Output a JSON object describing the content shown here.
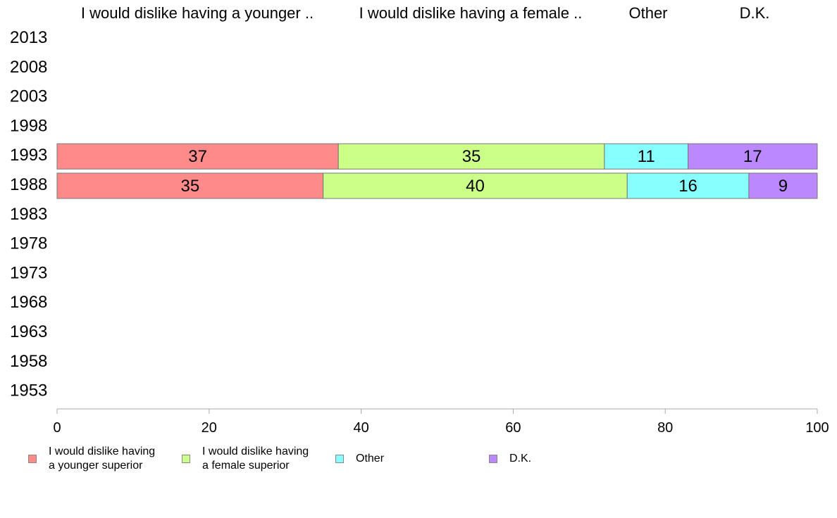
{
  "chart_data": {
    "type": "bar",
    "orientation": "horizontal",
    "stacked": true,
    "categories": [
      "2013",
      "2008",
      "2003",
      "1998",
      "1993",
      "1988",
      "1983",
      "1978",
      "1973",
      "1968",
      "1963",
      "1958",
      "1953"
    ],
    "series": [
      {
        "name": "I would dislike having a younger ..",
        "legend": "I would dislike having\na younger superior",
        "color": "#ff8a8a",
        "values": [
          null,
          null,
          null,
          null,
          37,
          35,
          null,
          null,
          null,
          null,
          null,
          null,
          null
        ]
      },
      {
        "name": "I would dislike having a female ..",
        "legend": "I would dislike having\na female superior",
        "color": "#ccff88",
        "values": [
          null,
          null,
          null,
          null,
          35,
          40,
          null,
          null,
          null,
          null,
          null,
          null,
          null
        ]
      },
      {
        "name": "Other",
        "legend": "Other",
        "color": "#88ffff",
        "values": [
          null,
          null,
          null,
          null,
          11,
          16,
          null,
          null,
          null,
          null,
          null,
          null,
          null
        ]
      },
      {
        "name": "D.K.",
        "legend": "D.K.",
        "color": "#bb88ff",
        "values": [
          null,
          null,
          null,
          null,
          17,
          9,
          null,
          null,
          null,
          null,
          null,
          null,
          null
        ]
      }
    ],
    "xlim": [
      0,
      100
    ],
    "xticks": [
      0,
      20,
      40,
      60,
      80,
      100
    ],
    "grid": false,
    "legend_position": "bottom"
  }
}
